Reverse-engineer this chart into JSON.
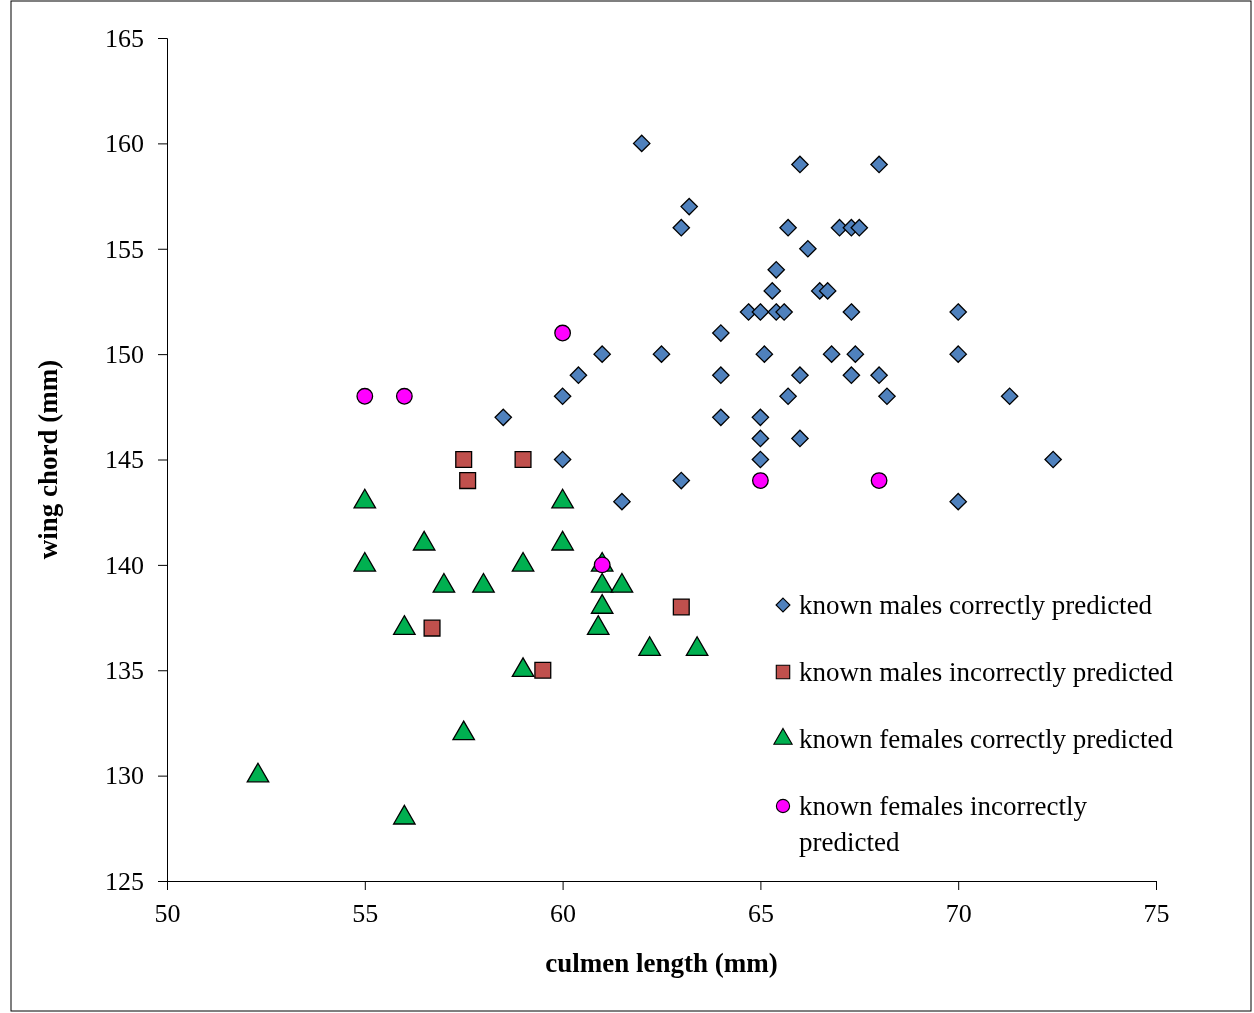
{
  "chart_data": {
    "type": "scatter",
    "xlabel": "culmen length (mm)",
    "ylabel": "wing chord (mm)",
    "xlim": [
      50,
      75
    ],
    "xticks": [
      50,
      55,
      60,
      65,
      70,
      75
    ],
    "ylim": [
      125,
      165
    ],
    "yticks": [
      125,
      130,
      135,
      140,
      145,
      150,
      155,
      160,
      165
    ],
    "grid": false,
    "legend": "bottom right",
    "series": [
      {
        "name": "known males correctly predicted",
        "color": "#4f81bd",
        "marker": "diamond",
        "x": [
          62,
          66,
          68,
          63.2,
          63,
          65.7,
          67,
          67.3,
          67.5,
          66.2,
          65.4,
          65.3,
          66.5,
          66.7,
          64.7,
          65,
          65.4,
          65.6,
          67.3,
          70,
          64,
          61,
          62.5,
          65.1,
          66.8,
          67.4,
          70,
          60.4,
          64,
          66,
          67.3,
          68,
          60,
          65.7,
          68.2,
          71.3,
          58.5,
          64,
          65,
          65,
          66,
          60,
          65,
          72.4,
          63,
          61.5,
          70
        ],
        "values": [
          160,
          159,
          159,
          157,
          156,
          156,
          156,
          156,
          156,
          155,
          154,
          153,
          153,
          153,
          152,
          152,
          152,
          152,
          152,
          152,
          151,
          150,
          150,
          150,
          150,
          150,
          150,
          149,
          149,
          149,
          149,
          149,
          148,
          148,
          148,
          148,
          147,
          147,
          147,
          146,
          146,
          145,
          145,
          145,
          144,
          143,
          143
        ]
      },
      {
        "name": "known males incorrectly predicted",
        "color": "#c0504d",
        "marker": "square",
        "x": [
          57.5,
          57.6,
          59,
          63,
          56.7,
          59.5
        ],
        "values": [
          145,
          144,
          145,
          138,
          137,
          135
        ]
      },
      {
        "name": "known females correctly predicted",
        "color": "#00b050",
        "marker": "triangle",
        "x": [
          55,
          55,
          56.5,
          56,
          57,
          58,
          59,
          59,
          60,
          60,
          61,
          61,
          61,
          60.9,
          61.5,
          62.2,
          63.4,
          57.5,
          52.3,
          56
        ],
        "values": [
          143,
          140,
          141,
          137,
          139,
          139,
          140,
          135,
          143,
          141,
          140,
          139,
          138,
          137,
          139,
          136,
          136,
          132,
          130,
          128
        ]
      },
      {
        "name": "known females incorrectly predicted",
        "color": "#ff00ff",
        "marker": "circle",
        "x": [
          55,
          56,
          60,
          61,
          65,
          68
        ],
        "values": [
          148,
          148,
          151,
          140,
          144,
          144
        ]
      }
    ]
  }
}
